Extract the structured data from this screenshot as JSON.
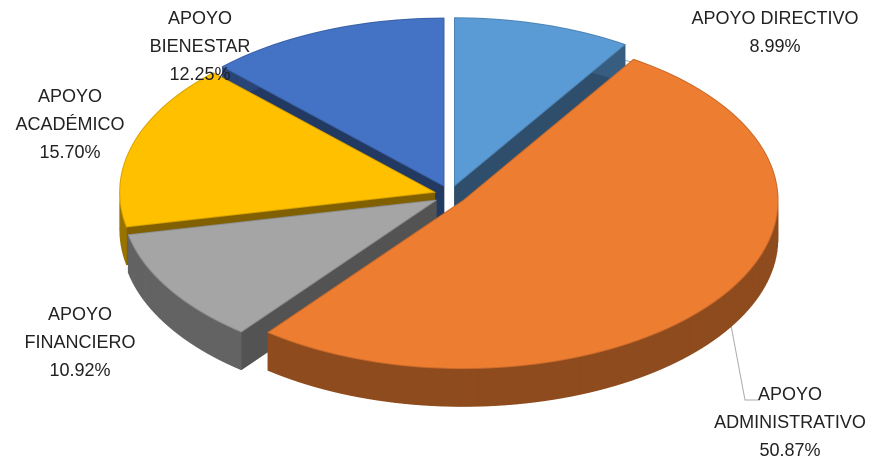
{
  "chart_data": {
    "type": "pie",
    "categories": [
      "APOYO DIRECTIVO",
      "APOYO ADMINISTRATIVO",
      "APOYO FINANCIERO",
      "APOYO ACADÉMICO",
      "APOYO BIENESTAR"
    ],
    "values": [
      8.99,
      50.87,
      10.92,
      15.7,
      12.25
    ],
    "value_labels": [
      "8.99%",
      "50.87%",
      "10.92%",
      "15.70%",
      "12.25%"
    ],
    "colors": [
      "#5b9bd5",
      "#ed7d31",
      "#a5a5a5",
      "#ffc000",
      "#4472c4"
    ]
  }
}
